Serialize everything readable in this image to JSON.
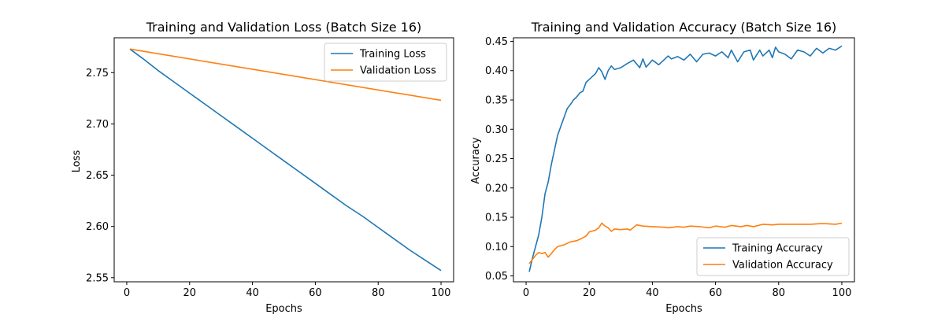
{
  "chart_data": [
    {
      "type": "line",
      "title": "Training and Validation Loss (Batch Size 16)",
      "xlabel": "Epochs",
      "ylabel": "Loss",
      "xlim": [
        -4,
        104
      ],
      "ylim": [
        2.546,
        2.784
      ],
      "xticks": [
        0,
        20,
        40,
        60,
        80,
        100
      ],
      "yticks": [
        2.55,
        2.6,
        2.65,
        2.7,
        2.75
      ],
      "ytick_labels": [
        "2.55",
        "2.60",
        "2.65",
        "2.70",
        "2.75"
      ],
      "legend": "top-right",
      "series": [
        {
          "name": "Training Loss",
          "color": "#1f77b4",
          "points": [
            [
              1,
              2.773
            ],
            [
              5,
              2.764
            ],
            [
              10,
              2.752
            ],
            [
              15,
              2.741
            ],
            [
              20,
              2.73
            ],
            [
              25,
              2.719
            ],
            [
              30,
              2.708
            ],
            [
              35,
              2.697
            ],
            [
              40,
              2.686
            ],
            [
              45,
              2.675
            ],
            [
              50,
              2.664
            ],
            [
              55,
              2.653
            ],
            [
              60,
              2.642
            ],
            [
              65,
              2.631
            ],
            [
              70,
              2.62
            ],
            [
              75,
              2.61
            ],
            [
              80,
              2.599
            ],
            [
              85,
              2.588
            ],
            [
              90,
              2.577
            ],
            [
              95,
              2.567
            ],
            [
              100,
              2.557
            ]
          ]
        },
        {
          "name": "Validation Loss",
          "color": "#ff7f0e",
          "points": [
            [
              1,
              2.773
            ],
            [
              100,
              2.723
            ]
          ]
        }
      ]
    },
    {
      "type": "line",
      "title": "Training and Validation Accuracy (Batch Size 16)",
      "xlabel": "Epochs",
      "ylabel": "Accuracy",
      "xlim": [
        -4,
        104
      ],
      "ylim": [
        0.04,
        0.456
      ],
      "xticks": [
        0,
        20,
        40,
        60,
        80,
        100
      ],
      "yticks": [
        0.05,
        0.1,
        0.15,
        0.2,
        0.25,
        0.3,
        0.35,
        0.4,
        0.45
      ],
      "ytick_labels": [
        "0.05",
        "0.10",
        "0.15",
        "0.20",
        "0.25",
        "0.30",
        "0.35",
        "0.40",
        "0.45"
      ],
      "legend": "bottom-right",
      "series": [
        {
          "name": "Training Accuracy",
          "color": "#1f77b4",
          "points": [
            [
              1,
              0.057
            ],
            [
              2,
              0.08
            ],
            [
              3,
              0.1
            ],
            [
              4,
              0.12
            ],
            [
              5,
              0.15
            ],
            [
              6,
              0.19
            ],
            [
              7,
              0.21
            ],
            [
              8,
              0.24
            ],
            [
              9,
              0.265
            ],
            [
              10,
              0.29
            ],
            [
              11,
              0.305
            ],
            [
              12,
              0.32
            ],
            [
              13,
              0.335
            ],
            [
              14,
              0.342
            ],
            [
              15,
              0.35
            ],
            [
              16,
              0.355
            ],
            [
              17,
              0.362
            ],
            [
              18,
              0.365
            ],
            [
              19,
              0.38
            ],
            [
              20,
              0.385
            ],
            [
              22,
              0.395
            ],
            [
              23,
              0.405
            ],
            [
              24,
              0.398
            ],
            [
              25,
              0.385
            ],
            [
              26,
              0.4
            ],
            [
              27,
              0.408
            ],
            [
              28,
              0.402
            ],
            [
              30,
              0.405
            ],
            [
              32,
              0.412
            ],
            [
              34,
              0.418
            ],
            [
              36,
              0.405
            ],
            [
              37,
              0.42
            ],
            [
              38,
              0.406
            ],
            [
              40,
              0.418
            ],
            [
              42,
              0.41
            ],
            [
              44,
              0.42
            ],
            [
              45,
              0.425
            ],
            [
              46,
              0.42
            ],
            [
              48,
              0.424
            ],
            [
              50,
              0.418
            ],
            [
              52,
              0.428
            ],
            [
              54,
              0.415
            ],
            [
              56,
              0.428
            ],
            [
              58,
              0.43
            ],
            [
              60,
              0.425
            ],
            [
              62,
              0.432
            ],
            [
              64,
              0.422
            ],
            [
              65,
              0.435
            ],
            [
              67,
              0.415
            ],
            [
              69,
              0.432
            ],
            [
              71,
              0.435
            ],
            [
              72,
              0.418
            ],
            [
              74,
              0.435
            ],
            [
              75,
              0.425
            ],
            [
              77,
              0.435
            ],
            [
              78,
              0.422
            ],
            [
              79,
              0.44
            ],
            [
              80,
              0.432
            ],
            [
              82,
              0.428
            ],
            [
              84,
              0.42
            ],
            [
              86,
              0.435
            ],
            [
              88,
              0.432
            ],
            [
              90,
              0.425
            ],
            [
              92,
              0.438
            ],
            [
              94,
              0.43
            ],
            [
              96,
              0.438
            ],
            [
              98,
              0.435
            ],
            [
              100,
              0.442
            ]
          ]
        },
        {
          "name": "Validation Accuracy",
          "color": "#ff7f0e",
          "points": [
            [
              1,
              0.071
            ],
            [
              2,
              0.078
            ],
            [
              3,
              0.085
            ],
            [
              4,
              0.09
            ],
            [
              5,
              0.088
            ],
            [
              6,
              0.09
            ],
            [
              7,
              0.082
            ],
            [
              8,
              0.088
            ],
            [
              9,
              0.095
            ],
            [
              10,
              0.1
            ],
            [
              12,
              0.103
            ],
            [
              14,
              0.108
            ],
            [
              16,
              0.11
            ],
            [
              18,
              0.115
            ],
            [
              19,
              0.118
            ],
            [
              20,
              0.125
            ],
            [
              22,
              0.128
            ],
            [
              23,
              0.132
            ],
            [
              24,
              0.14
            ],
            [
              25,
              0.135
            ],
            [
              26,
              0.132
            ],
            [
              27,
              0.126
            ],
            [
              28,
              0.13
            ],
            [
              30,
              0.129
            ],
            [
              32,
              0.13
            ],
            [
              33,
              0.128
            ],
            [
              35,
              0.137
            ],
            [
              37,
              0.135
            ],
            [
              40,
              0.134
            ],
            [
              44,
              0.133
            ],
            [
              45,
              0.132
            ],
            [
              48,
              0.134
            ],
            [
              50,
              0.133
            ],
            [
              52,
              0.135
            ],
            [
              55,
              0.134
            ],
            [
              58,
              0.132
            ],
            [
              60,
              0.135
            ],
            [
              63,
              0.133
            ],
            [
              65,
              0.136
            ],
            [
              68,
              0.134
            ],
            [
              70,
              0.136
            ],
            [
              72,
              0.134
            ],
            [
              75,
              0.138
            ],
            [
              78,
              0.137
            ],
            [
              80,
              0.138
            ],
            [
              85,
              0.138
            ],
            [
              90,
              0.138
            ],
            [
              93,
              0.139
            ],
            [
              95,
              0.139
            ],
            [
              98,
              0.138
            ],
            [
              100,
              0.14
            ]
          ]
        }
      ]
    }
  ]
}
